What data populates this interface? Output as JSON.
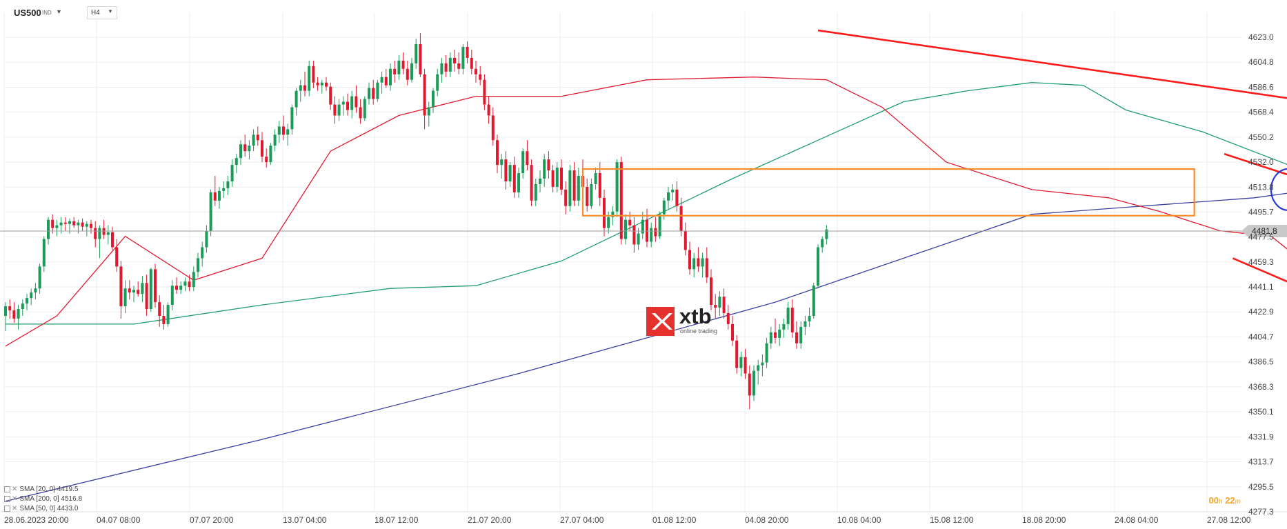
{
  "toolbar": {
    "symbol": "US500",
    "symbol_suffix": "IND",
    "timeframe": "H4"
  },
  "legend": [
    {
      "text": "SMA [20, 0] 4419.5"
    },
    {
      "text": "SMA [200, 0] 4516.8"
    },
    {
      "text": "SMA [50, 0] 4433.0"
    }
  ],
  "timer": {
    "hours": "00",
    "h_unit": "h",
    "minutes": "22",
    "m_unit": "m"
  },
  "logo": {
    "name": "xtb",
    "tagline": "online trading"
  },
  "colors": {
    "up": "#1a9b57",
    "down": "#e0192f",
    "sma20": "#e0192f",
    "sma50": "#1f9e6b",
    "sma200": "#3a3fa0",
    "trend": "#ff1a1a",
    "box": "#f98b2a",
    "circle": "#2a3bd8",
    "price_tag": "#c9c9c9"
  },
  "chart_data": {
    "type": "candlestick",
    "symbol": "US500",
    "timeframe": "H4",
    "y_ticks": [
      "4623.0",
      "4604.8",
      "4586.6",
      "4568.4",
      "4550.2",
      "4532.0",
      "4513.8",
      "4495.7",
      "4477.5",
      "4459.3",
      "4441.1",
      "4422.9",
      "4404.7",
      "4386.5",
      "4368.3",
      "4350.1",
      "4331.9",
      "4313.7",
      "4295.5",
      "4277.3"
    ],
    "x_ticks": [
      "28.06.2023   20:00",
      "04.07   08:00",
      "07.07   20:00",
      "13.07   04:00",
      "18.07   12:00",
      "21.07   20:00",
      "27.07   04:00",
      "01.08   12:00",
      "04.08   20:00",
      "10.08   04:00",
      "15.08   12:00",
      "18.08   20:00",
      "24.08   04:00",
      "27.08   12:00"
    ],
    "ylim": [
      4277.3,
      4623.0
    ],
    "current_price": "4481.8",
    "ohlc": [
      [
        4420,
        4430,
        4409,
        4427
      ],
      [
        4427,
        4432,
        4418,
        4424
      ],
      [
        4424,
        4430,
        4415,
        4418
      ],
      [
        4418,
        4428,
        4410,
        4425
      ],
      [
        4425,
        4432,
        4420,
        4429
      ],
      [
        4429,
        4436,
        4424,
        4433
      ],
      [
        4433,
        4440,
        4428,
        4437
      ],
      [
        4437,
        4444,
        4432,
        4440
      ],
      [
        4440,
        4458,
        4436,
        4456
      ],
      [
        4456,
        4478,
        4452,
        4476
      ],
      [
        4476,
        4492,
        4472,
        4490
      ],
      [
        4490,
        4494,
        4480,
        4484
      ],
      [
        4484,
        4490,
        4478,
        4486
      ],
      [
        4486,
        4492,
        4480,
        4488
      ],
      [
        4488,
        4492,
        4482,
        4487
      ],
      [
        4487,
        4491,
        4480,
        4489
      ],
      [
        4489,
        4492,
        4484,
        4486
      ],
      [
        4486,
        4490,
        4480,
        4488
      ],
      [
        4488,
        4491,
        4482,
        4485
      ],
      [
        4485,
        4489,
        4478,
        4487
      ],
      [
        4487,
        4490,
        4480,
        4484
      ],
      [
        4484,
        4489,
        4470,
        4476
      ],
      [
        4476,
        4486,
        4462,
        4484
      ],
      [
        4484,
        4490,
        4476,
        4479
      ],
      [
        4479,
        4486,
        4472,
        4481
      ],
      [
        4481,
        4485,
        4468,
        4470
      ],
      [
        4470,
        4476,
        4452,
        4456
      ],
      [
        4456,
        4460,
        4418,
        4427
      ],
      [
        4427,
        4446,
        4422,
        4440
      ],
      [
        4440,
        4446,
        4432,
        4437
      ],
      [
        4437,
        4442,
        4430,
        4439
      ],
      [
        4439,
        4445,
        4434,
        4436
      ],
      [
        4436,
        4449,
        4430,
        4444
      ],
      [
        4444,
        4450,
        4420,
        4425
      ],
      [
        4425,
        4455,
        4423,
        4454
      ],
      [
        4454,
        4458,
        4426,
        4430
      ],
      [
        4430,
        4435,
        4412,
        4420
      ],
      [
        4420,
        4428,
        4410,
        4414
      ],
      [
        4414,
        4430,
        4412,
        4428
      ],
      [
        4428,
        4446,
        4424,
        4442
      ],
      [
        4442,
        4448,
        4436,
        4439
      ],
      [
        4439,
        4445,
        4436,
        4442
      ],
      [
        4442,
        4448,
        4438,
        4445
      ],
      [
        4445,
        4450,
        4438,
        4441
      ],
      [
        4441,
        4456,
        4438,
        4452
      ],
      [
        4452,
        4466,
        4448,
        4462
      ],
      [
        4462,
        4474,
        4456,
        4470
      ],
      [
        4470,
        4486,
        4466,
        4482
      ],
      [
        4482,
        4512,
        4478,
        4510
      ],
      [
        4510,
        4522,
        4500,
        4504
      ],
      [
        4504,
        4514,
        4498,
        4511
      ],
      [
        4511,
        4518,
        4506,
        4513
      ],
      [
        4513,
        4522,
        4508,
        4518
      ],
      [
        4518,
        4534,
        4514,
        4530
      ],
      [
        4530,
        4538,
        4524,
        4535
      ],
      [
        4535,
        4548,
        4530,
        4545
      ],
      [
        4545,
        4552,
        4536,
        4540
      ],
      [
        4540,
        4548,
        4534,
        4544
      ],
      [
        4544,
        4556,
        4540,
        4552
      ],
      [
        4552,
        4558,
        4544,
        4548
      ],
      [
        4548,
        4554,
        4532,
        4536
      ],
      [
        4536,
        4542,
        4528,
        4532
      ],
      [
        4532,
        4546,
        4530,
        4544
      ],
      [
        4544,
        4556,
        4540,
        4552
      ],
      [
        4552,
        4562,
        4546,
        4558
      ],
      [
        4558,
        4566,
        4548,
        4552
      ],
      [
        4552,
        4560,
        4544,
        4556
      ],
      [
        4556,
        4574,
        4552,
        4572
      ],
      [
        4572,
        4586,
        4566,
        4584
      ],
      [
        4584,
        4592,
        4576,
        4588
      ],
      [
        4588,
        4598,
        4580,
        4584
      ],
      [
        4584,
        4606,
        4580,
        4602
      ],
      [
        4602,
        4606,
        4586,
        4590
      ],
      [
        4590,
        4594,
        4584,
        4588
      ],
      [
        4588,
        4592,
        4582,
        4590
      ],
      [
        4590,
        4594,
        4584,
        4587
      ],
      [
        4587,
        4590,
        4570,
        4574
      ],
      [
        4574,
        4580,
        4560,
        4566
      ],
      [
        4566,
        4578,
        4562,
        4574
      ],
      [
        4574,
        4580,
        4566,
        4576
      ],
      [
        4576,
        4582,
        4566,
        4570
      ],
      [
        4570,
        4584,
        4564,
        4580
      ],
      [
        4580,
        4588,
        4568,
        4572
      ],
      [
        4572,
        4578,
        4560,
        4564
      ],
      [
        4564,
        4580,
        4562,
        4578
      ],
      [
        4578,
        4590,
        4574,
        4586
      ],
      [
        4586,
        4592,
        4574,
        4578
      ],
      [
        4578,
        4592,
        4576,
        4590
      ],
      [
        4590,
        4598,
        4582,
        4594
      ],
      [
        4594,
        4600,
        4586,
        4588
      ],
      [
        4588,
        4604,
        4584,
        4600
      ],
      [
        4600,
        4606,
        4590,
        4596
      ],
      [
        4596,
        4610,
        4592,
        4606
      ],
      [
        4606,
        4612,
        4596,
        4600
      ],
      [
        4600,
        4606,
        4588,
        4592
      ],
      [
        4592,
        4608,
        4590,
        4604
      ],
      [
        4604,
        4622,
        4600,
        4618
      ],
      [
        4618,
        4626,
        4594,
        4596
      ],
      [
        4596,
        4600,
        4556,
        4566
      ],
      [
        4566,
        4576,
        4558,
        4572
      ],
      [
        4572,
        4586,
        4568,
        4584
      ],
      [
        4584,
        4600,
        4580,
        4596
      ],
      [
        4596,
        4608,
        4590,
        4604
      ],
      [
        4604,
        4610,
        4594,
        4598
      ],
      [
        4598,
        4612,
        4594,
        4608
      ],
      [
        4608,
        4614,
        4598,
        4604
      ],
      [
        4604,
        4612,
        4596,
        4600
      ],
      [
        4600,
        4618,
        4596,
        4616
      ],
      [
        4616,
        4620,
        4604,
        4608
      ],
      [
        4608,
        4614,
        4596,
        4600
      ],
      [
        4600,
        4606,
        4590,
        4596
      ],
      [
        4596,
        4602,
        4588,
        4592
      ],
      [
        4592,
        4596,
        4570,
        4574
      ],
      [
        4574,
        4580,
        4560,
        4566
      ],
      [
        4566,
        4572,
        4544,
        4548
      ],
      [
        4548,
        4552,
        4524,
        4530
      ],
      [
        4530,
        4538,
        4520,
        4534
      ],
      [
        4534,
        4540,
        4512,
        4518
      ],
      [
        4518,
        4532,
        4514,
        4530
      ],
      [
        4530,
        4536,
        4506,
        4510
      ],
      [
        4510,
        4528,
        4506,
        4524
      ],
      [
        4524,
        4542,
        4520,
        4540
      ],
      [
        4540,
        4548,
        4526,
        4530
      ],
      [
        4530,
        4534,
        4500,
        4504
      ],
      [
        4504,
        4520,
        4500,
        4516
      ],
      [
        4516,
        4526,
        4510,
        4520
      ],
      [
        4520,
        4538,
        4514,
        4534
      ],
      [
        4534,
        4540,
        4520,
        4526
      ],
      [
        4526,
        4530,
        4510,
        4514
      ],
      [
        4514,
        4532,
        4510,
        4528
      ],
      [
        4528,
        4534,
        4508,
        4512
      ],
      [
        4512,
        4518,
        4494,
        4500
      ],
      [
        4500,
        4530,
        4496,
        4526
      ],
      [
        4526,
        4532,
        4500,
        4504
      ],
      [
        4504,
        4528,
        4500,
        4522
      ],
      [
        4522,
        4534,
        4508,
        4514
      ],
      [
        4514,
        4520,
        4496,
        4500
      ],
      [
        4500,
        4520,
        4498,
        4516
      ],
      [
        4516,
        4528,
        4512,
        4524
      ],
      [
        4524,
        4532,
        4500,
        4506
      ],
      [
        4506,
        4512,
        4478,
        4484
      ],
      [
        4484,
        4496,
        4480,
        4492
      ],
      [
        4492,
        4500,
        4486,
        4496
      ],
      [
        4496,
        4534,
        4492,
        4532
      ],
      [
        4532,
        4536,
        4472,
        4476
      ],
      [
        4476,
        4494,
        4472,
        4490
      ],
      [
        4490,
        4496,
        4482,
        4486
      ],
      [
        4486,
        4492,
        4466,
        4472
      ],
      [
        4472,
        4484,
        4468,
        4480
      ],
      [
        4480,
        4496,
        4476,
        4490
      ],
      [
        4490,
        4498,
        4470,
        4474
      ],
      [
        4474,
        4488,
        4470,
        4484
      ],
      [
        4484,
        4492,
        4474,
        4478
      ],
      [
        4478,
        4496,
        4476,
        4494
      ],
      [
        4494,
        4506,
        4490,
        4504
      ],
      [
        4504,
        4514,
        4498,
        4510
      ],
      [
        4510,
        4516,
        4504,
        4512
      ],
      [
        4512,
        4518,
        4496,
        4500
      ],
      [
        4500,
        4506,
        4478,
        4482
      ],
      [
        4482,
        4488,
        4464,
        4468
      ],
      [
        4468,
        4474,
        4450,
        4454
      ],
      [
        4454,
        4466,
        4448,
        4462
      ],
      [
        4462,
        4470,
        4452,
        4456
      ],
      [
        4456,
        4466,
        4448,
        4462
      ],
      [
        4462,
        4470,
        4444,
        4448
      ],
      [
        4448,
        4454,
        4424,
        4428
      ],
      [
        4428,
        4436,
        4418,
        4426
      ],
      [
        4426,
        4438,
        4420,
        4434
      ],
      [
        4434,
        4440,
        4418,
        4422
      ],
      [
        4422,
        4428,
        4410,
        4414
      ],
      [
        4414,
        4420,
        4398,
        4402
      ],
      [
        4402,
        4406,
        4378,
        4382
      ],
      [
        4382,
        4394,
        4376,
        4390
      ],
      [
        4390,
        4396,
        4374,
        4378
      ],
      [
        4378,
        4384,
        4352,
        4362
      ],
      [
        4362,
        4384,
        4358,
        4380
      ],
      [
        4380,
        4388,
        4370,
        4384
      ],
      [
        4384,
        4392,
        4376,
        4386
      ],
      [
        4386,
        4404,
        4382,
        4400
      ],
      [
        4400,
        4412,
        4396,
        4408
      ],
      [
        4408,
        4418,
        4400,
        4404
      ],
      [
        4404,
        4414,
        4398,
        4410
      ],
      [
        4410,
        4418,
        4404,
        4414
      ],
      [
        4414,
        4430,
        4410,
        4426
      ],
      [
        4426,
        4432,
        4404,
        4408
      ],
      [
        4408,
        4416,
        4396,
        4400
      ],
      [
        4400,
        4416,
        4396,
        4412
      ],
      [
        4412,
        4420,
        4406,
        4416
      ],
      [
        4416,
        4426,
        4412,
        4420
      ],
      [
        4420,
        4444,
        4418,
        4442
      ],
      [
        4442,
        4472,
        4440,
        4470
      ],
      [
        4470,
        4478,
        4466,
        4476
      ],
      [
        4476,
        4486,
        4472,
        4483
      ]
    ],
    "sma20": [
      [
        0,
        4398
      ],
      [
        12,
        4420
      ],
      [
        28,
        4478
      ],
      [
        44,
        4446
      ],
      [
        60,
        4462
      ],
      [
        76,
        4540
      ],
      [
        92,
        4566
      ],
      [
        110,
        4580
      ],
      [
        130,
        4580
      ],
      [
        150,
        4592
      ],
      [
        175,
        4594
      ],
      [
        192,
        4592
      ],
      [
        205,
        4572
      ],
      [
        220,
        4532
      ],
      [
        240,
        4512
      ],
      [
        258,
        4506
      ],
      [
        270,
        4496
      ],
      [
        284,
        4482
      ],
      [
        296,
        4478
      ],
      [
        304,
        4458
      ],
      [
        320,
        4438
      ],
      [
        334,
        4412
      ],
      [
        344,
        4398
      ],
      [
        357,
        4396
      ],
      [
        370,
        4400
      ],
      [
        380,
        4416
      ]
    ],
    "sma50": [
      [
        0,
        4414
      ],
      [
        30,
        4414
      ],
      [
        60,
        4428
      ],
      [
        90,
        4440
      ],
      [
        110,
        4442
      ],
      [
        130,
        4460
      ],
      [
        150,
        4490
      ],
      [
        170,
        4520
      ],
      [
        190,
        4548
      ],
      [
        210,
        4576
      ],
      [
        225,
        4584
      ],
      [
        240,
        4590
      ],
      [
        252,
        4588
      ],
      [
        262,
        4570
      ],
      [
        280,
        4554
      ],
      [
        300,
        4530
      ],
      [
        318,
        4504
      ],
      [
        330,
        4476
      ],
      [
        350,
        4450
      ],
      [
        370,
        4436
      ],
      [
        380,
        4433
      ]
    ],
    "sma200": [
      [
        0,
        4285
      ],
      [
        60,
        4330
      ],
      [
        120,
        4378
      ],
      [
        180,
        4430
      ],
      [
        240,
        4494
      ],
      [
        292,
        4506
      ],
      [
        320,
        4518
      ],
      [
        350,
        4516
      ],
      [
        365,
        4515
      ],
      [
        380,
        4516
      ]
    ],
    "trendlines": [
      {
        "from": [
          190,
          4628
        ],
        "to": [
          408,
          4530
        ]
      },
      {
        "from": [
          285,
          4538
        ],
        "to": [
          398,
          4423
        ]
      },
      {
        "from": [
          287,
          4462
        ],
        "to": [
          380,
          4338
        ]
      }
    ]
  }
}
